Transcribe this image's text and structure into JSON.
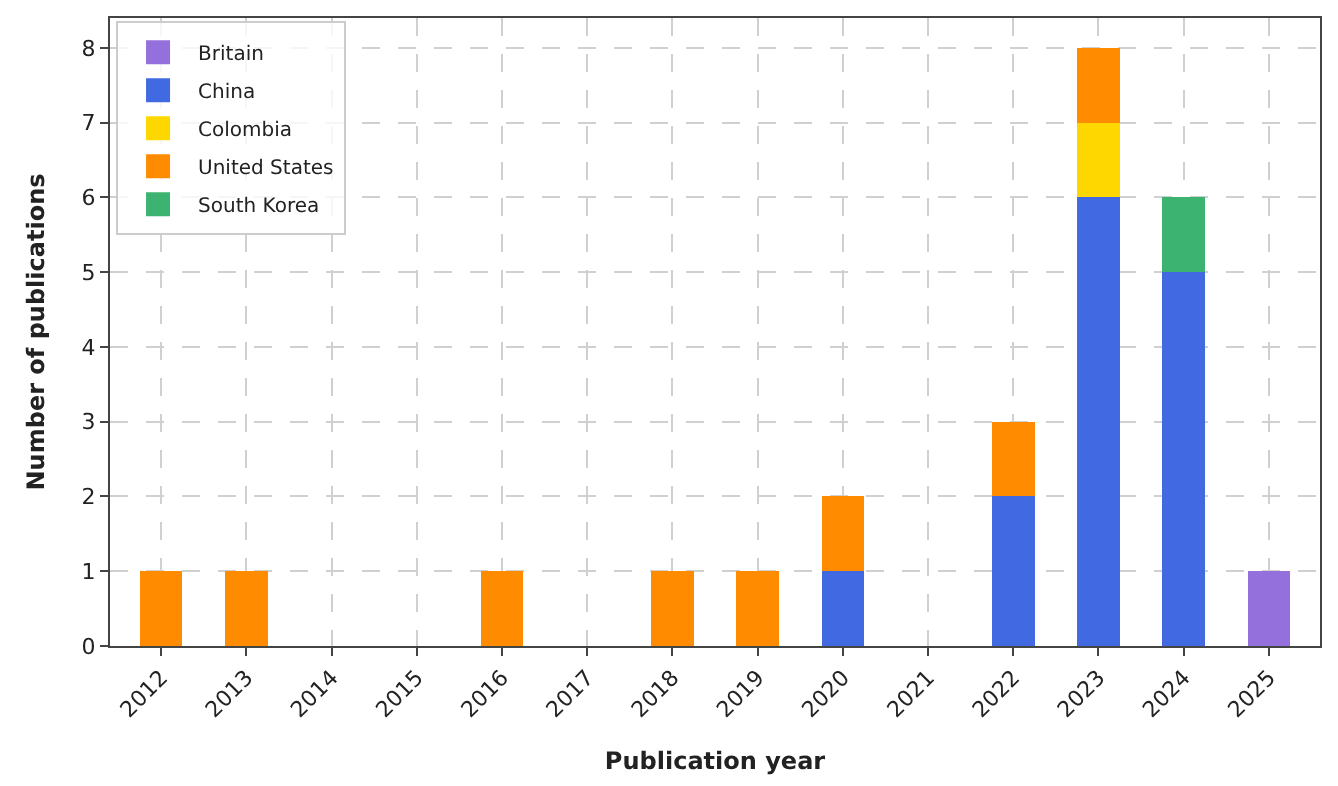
{
  "chart_data": {
    "type": "bar",
    "stacked": true,
    "xlabel": "Publication year",
    "ylabel": "Number of publications",
    "categories": [
      "2012",
      "2013",
      "2014",
      "2015",
      "2016",
      "2017",
      "2018",
      "2019",
      "2020",
      "2021",
      "2022",
      "2023",
      "2024",
      "2025"
    ],
    "series": [
      {
        "name": "Britain",
        "color": "#9370db",
        "values": [
          null,
          null,
          null,
          null,
          null,
          null,
          null,
          null,
          null,
          null,
          null,
          null,
          null,
          1
        ]
      },
      {
        "name": "China",
        "color": "#4169e1",
        "values": [
          null,
          null,
          null,
          null,
          null,
          null,
          null,
          null,
          1,
          null,
          2,
          6,
          5,
          null
        ]
      },
      {
        "name": "Colombia",
        "color": "#ffd700",
        "values": [
          null,
          null,
          null,
          null,
          null,
          null,
          null,
          null,
          null,
          null,
          null,
          1,
          null,
          null
        ]
      },
      {
        "name": "United States",
        "color": "#ff8c00",
        "values": [
          1,
          1,
          null,
          null,
          1,
          null,
          1,
          1,
          1,
          null,
          1,
          1,
          null,
          null
        ]
      },
      {
        "name": "South Korea",
        "color": "#3cb371",
        "values": [
          null,
          null,
          null,
          null,
          null,
          null,
          null,
          null,
          null,
          null,
          null,
          null,
          1,
          null
        ]
      }
    ],
    "ylim": [
      0,
      8.4
    ],
    "yticks": [
      0,
      1,
      2,
      3,
      4,
      5,
      6,
      7,
      8
    ],
    "grid": true,
    "legend": "top left"
  }
}
